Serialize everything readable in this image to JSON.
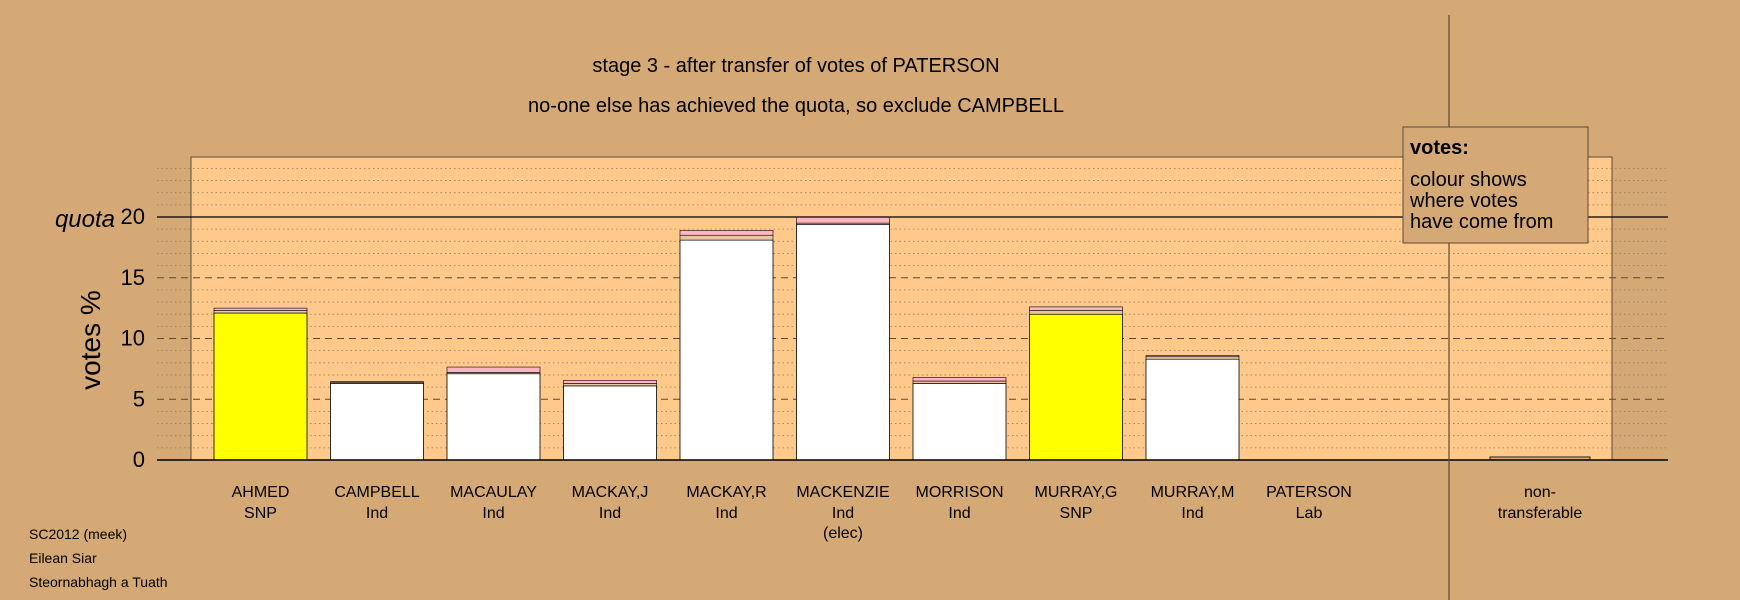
{
  "chart_data": {
    "type": "bar",
    "title_lines": [
      "stage 3 - after transfer of votes of PATERSON",
      "no-one else has achieved the quota, so exclude CAMPBELL"
    ],
    "ylabel": "votes %",
    "quota_label": "quota",
    "quota": 20,
    "ylim": [
      0,
      25
    ],
    "yticks": [
      0,
      5,
      10,
      15,
      20
    ],
    "candidates": [
      {
        "name": "AHMED",
        "party": "SNP",
        "note": "",
        "base": 12.1,
        "base_color": "#FFFF00",
        "transfers": [
          0.2,
          0.2
        ]
      },
      {
        "name": "CAMPBELL",
        "party": "Ind",
        "note": "",
        "base": 6.3,
        "base_color": "#FFFFFF",
        "transfers": [
          0.1,
          0.05
        ]
      },
      {
        "name": "MACAULAY",
        "party": "Ind",
        "note": "",
        "base": 7.1,
        "base_color": "#FFFFFF",
        "transfers": [
          0.1,
          0.45
        ]
      },
      {
        "name": "MACKAY,J",
        "party": "Ind",
        "note": "",
        "base": 6.1,
        "base_color": "#FFFFFF",
        "transfers": [
          0.2,
          0.25
        ]
      },
      {
        "name": "MACKAY,R",
        "party": "Ind",
        "note": "",
        "base": 18.1,
        "base_color": "#FFFFFF",
        "transfers": [
          0.4,
          0.4
        ]
      },
      {
        "name": "MACKENZIE",
        "party": "Ind",
        "note": "(elec)",
        "base": 19.4,
        "base_color": "#FFFFFF",
        "transfers": [
          0.1,
          0.5
        ]
      },
      {
        "name": "MORRISON",
        "party": "Ind",
        "note": "",
        "base": 6.3,
        "base_color": "#FFFFFF",
        "transfers": [
          0.2,
          0.3
        ]
      },
      {
        "name": "MURRAY,G",
        "party": "SNP",
        "note": "",
        "base": 12.0,
        "base_color": "#FFFF00",
        "transfers": [
          0.3,
          0.3
        ]
      },
      {
        "name": "MURRAY,M",
        "party": "Ind",
        "note": "",
        "base": 8.3,
        "base_color": "#FFFFFF",
        "transfers": [
          0.2,
          0.1
        ]
      },
      {
        "name": "PATERSON",
        "party": "Lab",
        "note": "",
        "base": 0,
        "base_color": "#FFFFFF",
        "transfers": [
          0,
          0
        ]
      }
    ],
    "transfer_colors": [
      "#E6C8A0",
      "#FFB6C1"
    ],
    "nontransferable": {
      "label_line1": "non-",
      "label_line2": "transferable",
      "value": 0.25,
      "color": "#D4A976"
    },
    "legend": {
      "placement": "top-right",
      "title": "votes:",
      "lines": [
        "colour shows",
        "where votes",
        "have come from"
      ]
    }
  },
  "footer": {
    "lines": [
      "SC2012 (meek)",
      "Eilean Siar",
      "Steornabhagh a Tuath"
    ]
  },
  "colors": {
    "background": "#D4A976",
    "plot_area": "#FFC98C",
    "grid_minor": "#9C7C58",
    "grid_major": "#5A4A38"
  }
}
